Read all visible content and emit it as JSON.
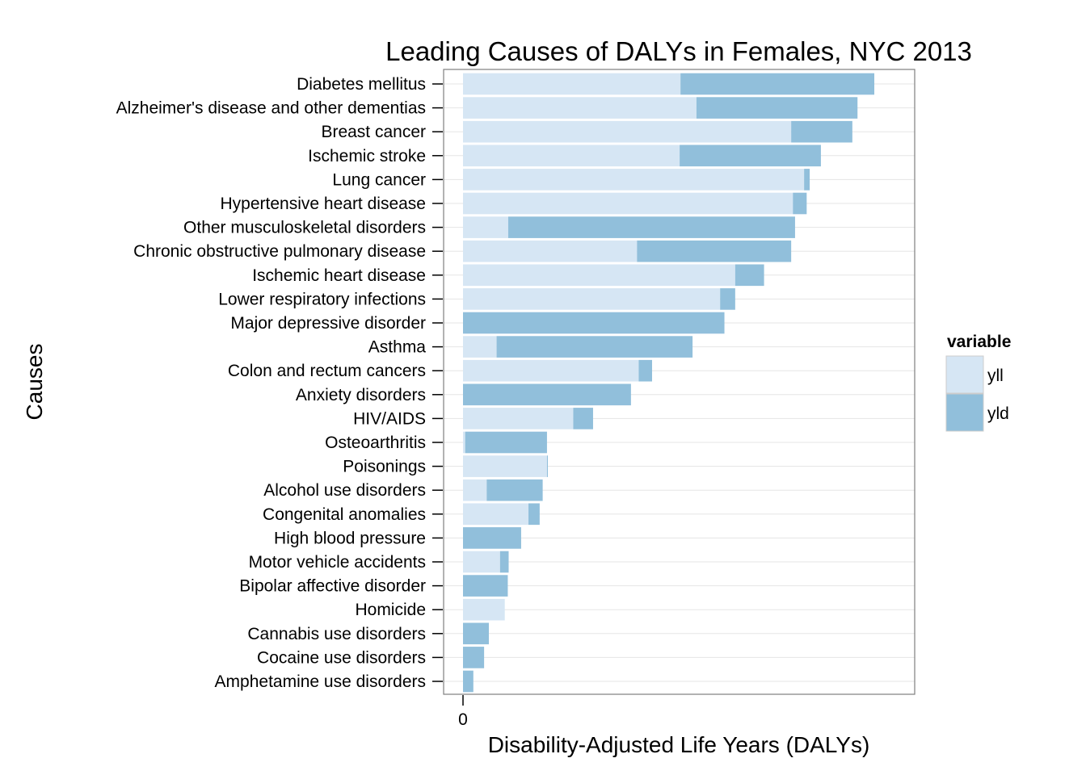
{
  "chart_data": {
    "type": "bar",
    "orientation": "horizontal",
    "stacked": true,
    "title": "Leading Causes of DALYs in Females, NYC 2013",
    "xlabel": "Disability-Adjusted Life Years (DALYs)",
    "ylabel": "Causes",
    "x_ticks": [
      "0"
    ],
    "xlim": [
      0,
      1000
    ],
    "grid": "horizontal",
    "legend": {
      "title": "variable",
      "position": "right"
    },
    "categories": [
      "Diabetes mellitus",
      "Alzheimer's disease and other dementias",
      "Breast cancer",
      "Ischemic stroke",
      "Lung cancer",
      "Hypertensive heart disease",
      "Other musculoskeletal disorders",
      "Chronic obstructive pulmonary disease",
      "Ischemic heart disease",
      "Lower respiratory infections",
      "Major depressive disorder",
      "Asthma",
      "Colon and rectum cancers",
      "Anxiety disorders",
      "HIV/AIDS",
      "Osteoarthritis",
      "Poisonings",
      "Alcohol use disorders",
      "Congenital anomalies",
      "High blood pressure",
      "Motor vehicle accidents",
      "Bipolar affective disorder",
      "Homicide",
      "Cannabis use disorders",
      "Cocaine use disorders",
      "Amphetamine use disorders"
    ],
    "series": [
      {
        "name": "yll",
        "color": "#d6e6f4",
        "values": [
          505,
          542,
          762,
          503,
          792,
          766,
          105,
          404,
          632,
          597,
          0,
          78,
          408,
          0,
          256,
          5,
          195,
          55,
          152,
          0,
          86,
          0,
          97,
          0,
          0,
          0
        ]
      },
      {
        "name": "yld",
        "color": "#91bfdb",
        "values": [
          450,
          374,
          142,
          328,
          13,
          32,
          666,
          358,
          67,
          35,
          607,
          455,
          31,
          390,
          46,
          190,
          2,
          130,
          26,
          135,
          20,
          104,
          0,
          60,
          49,
          24
        ]
      }
    ]
  }
}
